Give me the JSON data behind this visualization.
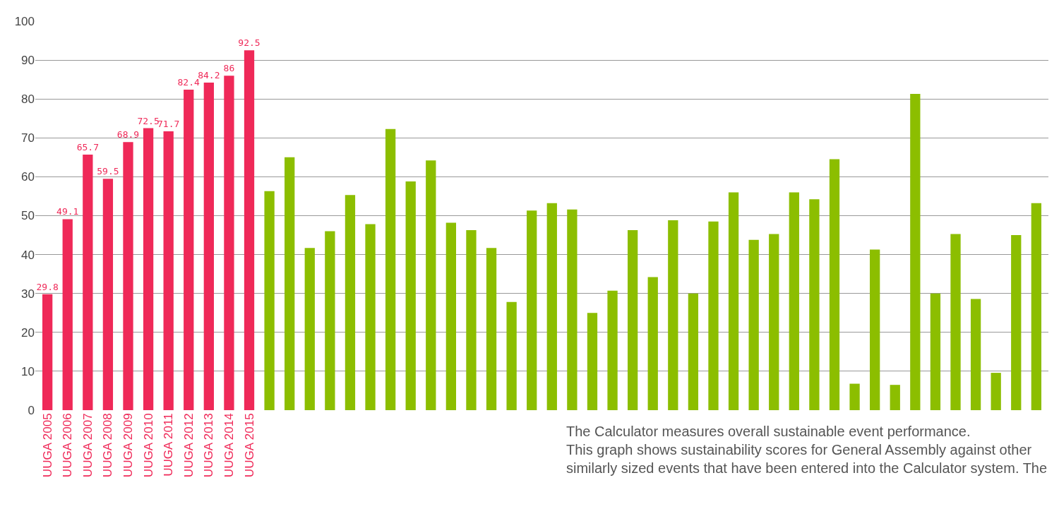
{
  "chart_data": {
    "type": "bar",
    "categories": [
      "UUGA 2005",
      "UUGA 2006",
      "UUGA 2007",
      "UUGA 2008",
      "UUGA 2009",
      "UUGA 2010",
      "UUGA 2011",
      "UUGA 2012",
      "UUGA 2013",
      "UUGA 2014",
      "UUGA 2015",
      null,
      null,
      null,
      null,
      null,
      null,
      null,
      null,
      null,
      null,
      null,
      null,
      null,
      null,
      null,
      null,
      null,
      null,
      null,
      null,
      null,
      null,
      null,
      null,
      null,
      null,
      null,
      null,
      null,
      null,
      null,
      null,
      null,
      null,
      null,
      null,
      null,
      null,
      null
    ],
    "values": [
      29.8,
      49.1,
      65.7,
      59.5,
      68.9,
      72.5,
      71.7,
      82.4,
      84.2,
      86,
      92.5,
      56.3,
      65,
      41.7,
      46,
      55.3,
      47.8,
      72.3,
      58.8,
      64.2,
      48.2,
      46.3,
      41.7,
      27.8,
      51.3,
      53.2,
      51.6,
      25,
      30.7,
      46.3,
      34.2,
      48.8,
      30,
      48.5,
      56,
      43.8,
      45.3,
      56,
      54.2,
      64.5,
      6.8,
      41.3,
      6.5,
      81.3,
      30,
      45.3,
      28.6,
      9.6,
      45,
      53.2
    ],
    "colors": [
      "#ef2958",
      "#ef2958",
      "#ef2958",
      "#ef2958",
      "#ef2958",
      "#ef2958",
      "#ef2958",
      "#ef2958",
      "#ef2958",
      "#ef2958",
      "#ef2958",
      "#8cbe00",
      "#8cbe00",
      "#8cbe00",
      "#8cbe00",
      "#8cbe00",
      "#8cbe00",
      "#8cbe00",
      "#8cbe00",
      "#8cbe00",
      "#8cbe00",
      "#8cbe00",
      "#8cbe00",
      "#8cbe00",
      "#8cbe00",
      "#8cbe00",
      "#8cbe00",
      "#8cbe00",
      "#8cbe00",
      "#8cbe00",
      "#8cbe00",
      "#8cbe00",
      "#8cbe00",
      "#8cbe00",
      "#8cbe00",
      "#8cbe00",
      "#8cbe00",
      "#8cbe00",
      "#8cbe00",
      "#8cbe00",
      "#8cbe00",
      "#8cbe00",
      "#8cbe00",
      "#8cbe00",
      "#8cbe00",
      "#8cbe00",
      "#8cbe00",
      "#8cbe00",
      "#8cbe00",
      "#8cbe00"
    ],
    "value_labels": [
      "29.8",
      "49.1",
      "65.7",
      "59.5",
      "68.9",
      "72.5",
      "71.7",
      "82.4",
      "84.2",
      "86",
      "92.5",
      null,
      null,
      null,
      null,
      null,
      null,
      null,
      null,
      null,
      null,
      null,
      null,
      null,
      null,
      null,
      null,
      null,
      null,
      null,
      null,
      null,
      null,
      null,
      null,
      null,
      null,
      null,
      null,
      null,
      null,
      null,
      null,
      null,
      null,
      null,
      null,
      null,
      null,
      null
    ],
    "ylim": [
      0,
      100
    ],
    "yticks": [
      0,
      10,
      20,
      30,
      40,
      50,
      60,
      70,
      80,
      90,
      100
    ],
    "grid": "y",
    "annotations": [
      "The Calculator measures overall sustainable event performance.\nThis graph shows sustainability scores for General Assembly against other\nsimilarly sized events that have been entered into the Calculator system. The"
    ]
  }
}
